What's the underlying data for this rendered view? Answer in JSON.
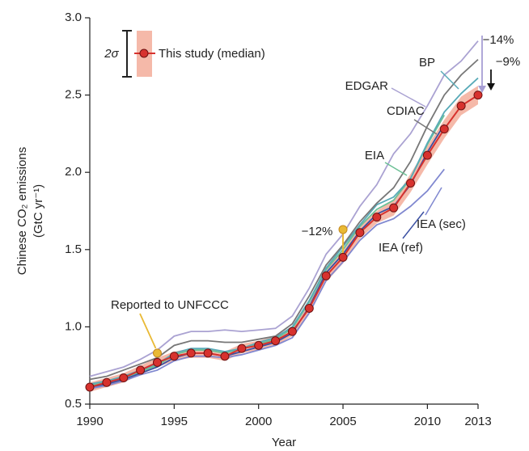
{
  "chart_data": {
    "type": "line",
    "x_label": "Year",
    "y_label": [
      "Chinese CO₂ emissions",
      "(GtC yr⁻¹)"
    ],
    "xlim": [
      1990,
      2013
    ],
    "xticks": [
      1990,
      1995,
      2000,
      2005,
      2010,
      2013
    ],
    "ylim": [
      0.5,
      3.0
    ],
    "yticks": [
      0.5,
      {
        "value": 1,
        "label": "1.0"
      },
      1.5,
      {
        "value": 2,
        "label": "2.0"
      },
      2.5,
      {
        "value": 3,
        "label": "3.0"
      }
    ],
    "x": [
      1990,
      1991,
      1992,
      1993,
      1994,
      1995,
      1996,
      1997,
      1998,
      1999,
      2000,
      2001,
      2002,
      2003,
      2004,
      2005,
      2006,
      2007,
      2008,
      2009,
      2010,
      2011,
      2012,
      2013
    ],
    "band_label": "2σ",
    "series": [
      {
        "name": "This study (median)",
        "color": "#d7322e",
        "band_color": "#f5b9a9",
        "values": [
          0.61,
          0.64,
          0.67,
          0.72,
          0.77,
          0.81,
          0.83,
          0.83,
          0.81,
          0.86,
          0.88,
          0.91,
          0.97,
          1.12,
          1.33,
          1.45,
          1.61,
          1.71,
          1.77,
          1.93,
          2.11,
          2.28,
          2.43,
          2.5
        ],
        "lower": [
          0.58,
          0.61,
          0.64,
          0.69,
          0.74,
          0.78,
          0.8,
          0.8,
          0.78,
          0.83,
          0.85,
          0.88,
          0.94,
          1.08,
          1.29,
          1.41,
          1.57,
          1.67,
          1.72,
          1.87,
          2.05,
          2.22,
          2.37,
          2.44
        ],
        "upper": [
          0.64,
          0.67,
          0.7,
          0.75,
          0.8,
          0.84,
          0.86,
          0.86,
          0.84,
          0.89,
          0.91,
          0.94,
          1.0,
          1.16,
          1.37,
          1.49,
          1.65,
          1.75,
          1.82,
          1.99,
          2.17,
          2.34,
          2.49,
          2.56
        ]
      },
      {
        "name": "EDGAR",
        "color": "#aaa2d2",
        "label_color": "#9a90c8",
        "values": [
          0.68,
          0.71,
          0.74,
          0.79,
          0.85,
          0.94,
          0.97,
          0.97,
          0.98,
          0.97,
          0.98,
          0.99,
          1.07,
          1.25,
          1.47,
          1.6,
          1.78,
          1.92,
          2.12,
          2.25,
          2.43,
          2.63,
          2.72,
          2.85
        ]
      },
      {
        "name": "CDIAC",
        "color": "#777777",
        "label_color": "#111111",
        "values": [
          0.66,
          0.68,
          0.72,
          0.76,
          0.8,
          0.88,
          0.91,
          0.91,
          0.9,
          0.9,
          0.92,
          0.94,
          1.02,
          1.2,
          1.4,
          1.53,
          1.68,
          1.8,
          1.9,
          2.07,
          2.3,
          2.5,
          2.63,
          2.73
        ]
      },
      {
        "name": "BP",
        "color": "#58aab8",
        "label_color": "#2f9fb0",
        "values": [
          0.63,
          0.65,
          0.68,
          0.72,
          0.76,
          0.83,
          0.86,
          0.86,
          0.84,
          0.86,
          0.9,
          0.93,
          1.0,
          1.17,
          1.38,
          1.52,
          1.66,
          1.79,
          1.84,
          1.96,
          2.19,
          2.39,
          2.51,
          2.61
        ]
      },
      {
        "name": "EIA",
        "color": "#6cc095",
        "label_color": "#4bb27f",
        "values": [
          0.62,
          0.64,
          0.67,
          0.71,
          0.75,
          0.82,
          0.85,
          0.85,
          0.83,
          0.86,
          0.89,
          0.92,
          0.99,
          1.16,
          1.37,
          1.5,
          1.65,
          1.76,
          1.82,
          1.96,
          2.18,
          2.37,
          null,
          null
        ]
      },
      {
        "name": "IEA (ref)",
        "color": "#3b50a2",
        "label_color": "#2e459c",
        "values": [
          0.61,
          0.63,
          0.66,
          0.7,
          0.74,
          0.8,
          0.83,
          0.83,
          0.81,
          0.84,
          0.87,
          0.9,
          0.96,
          1.13,
          1.35,
          1.47,
          1.62,
          1.73,
          1.78,
          1.92,
          2.13,
          2.31,
          null,
          null
        ]
      },
      {
        "name": "IEA (sec)",
        "color": "#8088d0",
        "label_color": "#5c64b8",
        "values": [
          0.6,
          0.62,
          0.65,
          0.69,
          0.72,
          0.78,
          0.81,
          0.81,
          0.8,
          0.82,
          0.85,
          0.88,
          0.93,
          1.09,
          1.3,
          1.42,
          1.56,
          1.66,
          1.7,
          1.78,
          1.88,
          2.02,
          null,
          null
        ]
      }
    ],
    "reported": {
      "name": "Reported to UNFCCC",
      "color": "#e9b935",
      "x": [
        1994,
        2005
      ],
      "values": [
        0.83,
        1.63
      ]
    },
    "annotations": [
      {
        "text": "−12%",
        "color": "#e8852a"
      },
      {
        "text": "−14%",
        "color": "#a79ed4"
      },
      {
        "text": "−9%",
        "color": "#111111"
      }
    ]
  }
}
